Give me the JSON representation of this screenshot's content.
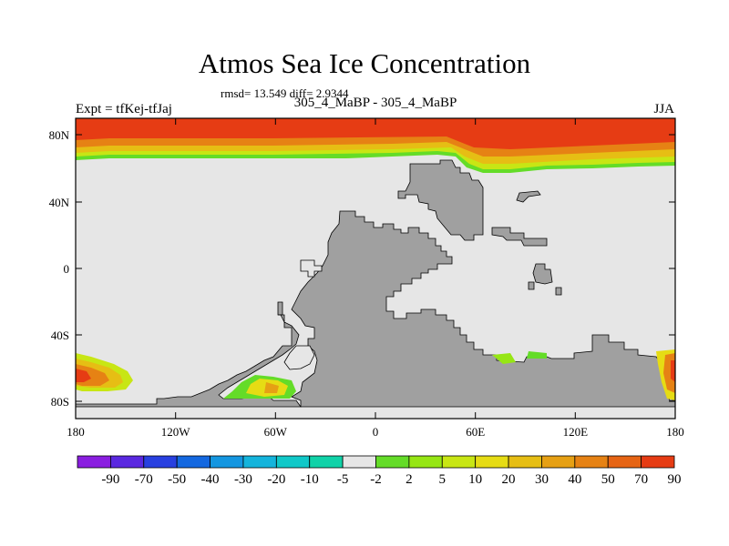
{
  "title": "Atmos Sea Ice Concentration",
  "stats": "rmsd= 13.549 diff= 2.9344",
  "subtitle": "305_4_MaBP - 305_4_MaBP",
  "left_label": "Expt = tfKej-tfJaj",
  "right_label": "JJA",
  "lat_ticks": [
    "80N",
    "40N",
    "0",
    "40S",
    "80S"
  ],
  "lon_ticks": [
    "180",
    "120W",
    "60W",
    "0",
    "60E",
    "120E",
    "180"
  ],
  "colorbar": {
    "labels": [
      "-90",
      "-70",
      "-50",
      "-40",
      "-30",
      "-20",
      "-10",
      "-5",
      "-2",
      "2",
      "5",
      "10",
      "20",
      "30",
      "40",
      "50",
      "70",
      "90"
    ],
    "colors": [
      "#8a1ee0",
      "#5a28e0",
      "#2840e0",
      "#1468e0",
      "#1496e0",
      "#14b4dc",
      "#10c8c8",
      "#10d2a8",
      "#e6e6e6",
      "#64dc28",
      "#96e614",
      "#c8e614",
      "#e6dc14",
      "#e6be14",
      "#e6a014",
      "#e68214",
      "#e66414",
      "#e63c14"
    ]
  },
  "colors": {
    "ocean": "#e6e6e6",
    "land": "#a0a0a0",
    "ice_high": "#e63c14",
    "ice_mid": "#e6a014",
    "ice_low": "#64dc28"
  }
}
